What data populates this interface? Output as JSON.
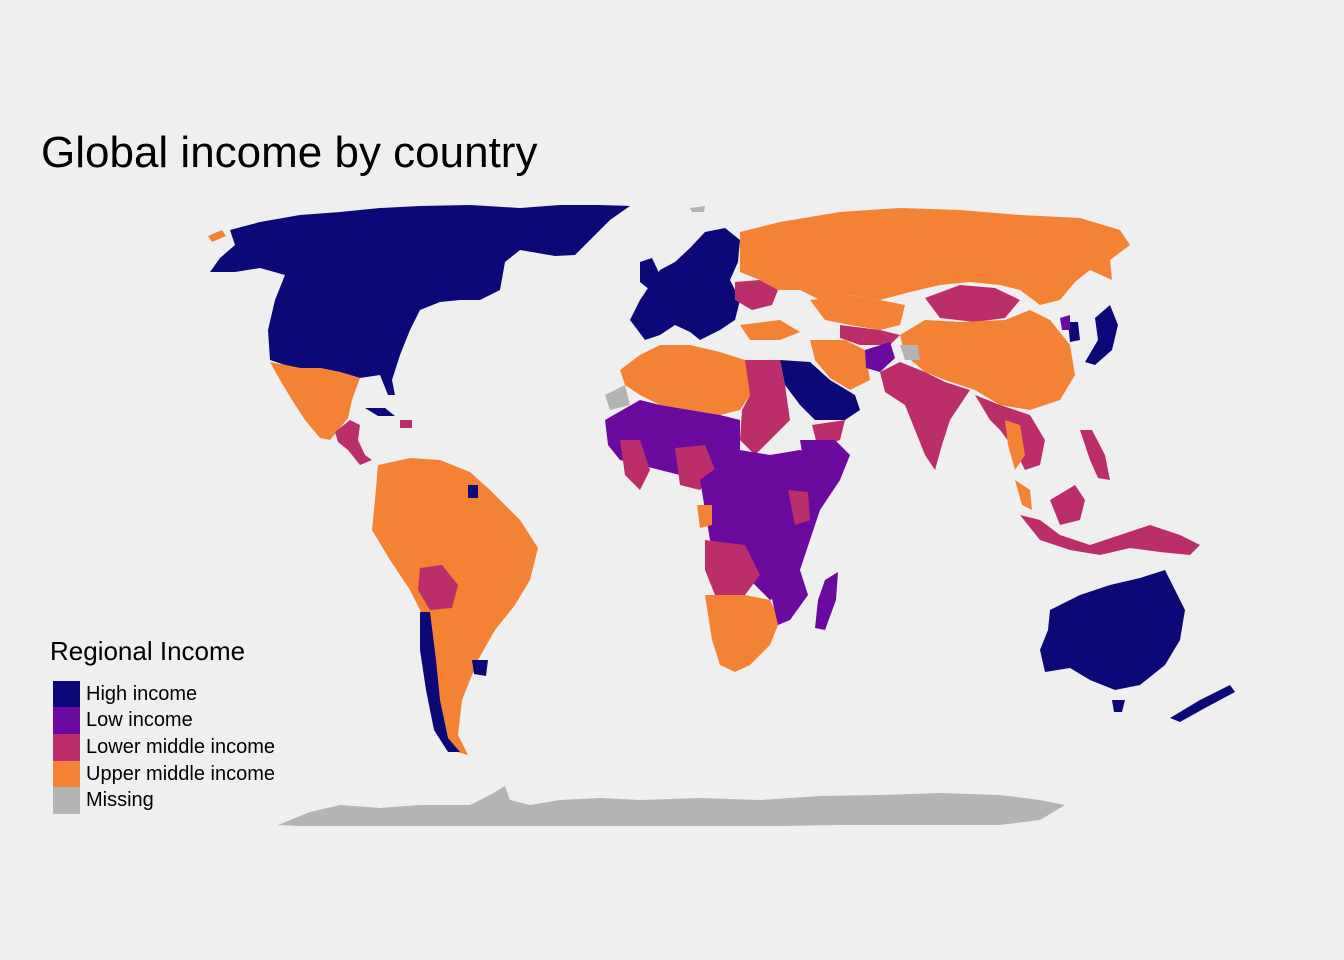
{
  "title": "Global income by country",
  "legend": {
    "title": "Regional Income",
    "items": [
      {
        "key": "high",
        "label": "High income",
        "color": "#0d0877"
      },
      {
        "key": "low",
        "label": "Low income",
        "color": "#6a0a9e"
      },
      {
        "key": "lower_middle",
        "label": "Lower middle income",
        "color": "#bb2e69"
      },
      {
        "key": "upper_middle",
        "label": "Upper middle income",
        "color": "#f48235"
      },
      {
        "key": "missing",
        "label": "Missing",
        "color": "#b4b4b4"
      }
    ]
  },
  "background_color": "#efefef"
}
